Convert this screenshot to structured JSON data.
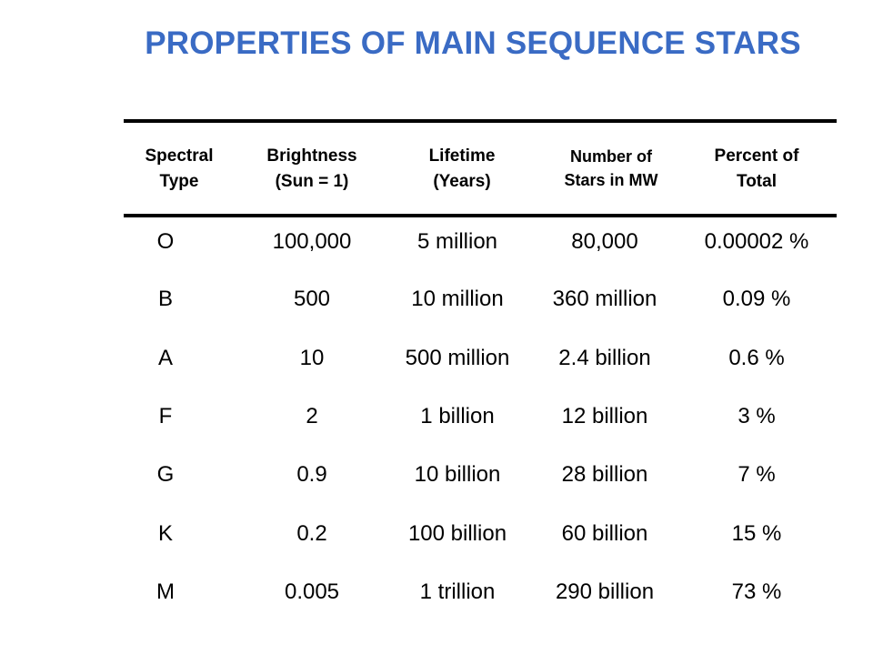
{
  "title": "PROPERTIES OF MAIN SEQUENCE STARS",
  "table": {
    "headers": [
      "Spectral\nType",
      "Brightness\n(Sun = 1)",
      "Lifetime\n(Years)",
      "Number of\nStars in MW",
      "Percent of\nTotal"
    ],
    "rows": [
      [
        "O",
        "100,000",
        "5 million",
        "80,000",
        "0.00002 %"
      ],
      [
        "B",
        "500",
        "10 million",
        "360 million",
        "0.09 %"
      ],
      [
        "A",
        "10",
        "500 million",
        "2.4 billion",
        "0.6 %"
      ],
      [
        "F",
        "2",
        "1 billion",
        "12 billion",
        "3 %"
      ],
      [
        "G",
        "0.9",
        "10 billion",
        "28 billion",
        "7 %"
      ],
      [
        "K",
        "0.2",
        "100 billion",
        "60 billion",
        "15 %"
      ],
      [
        "M",
        "0.005",
        "1 trillion",
        "290 billion",
        "73 %"
      ]
    ]
  },
  "colors": {
    "title": "#3a6bc4",
    "text": "#000000",
    "rule": "#000000"
  }
}
